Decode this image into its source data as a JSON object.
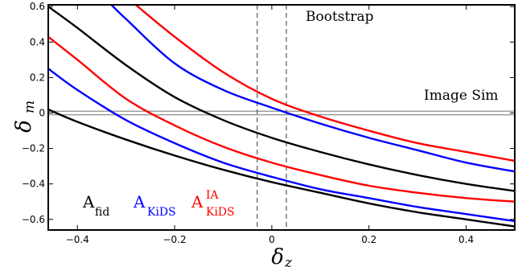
{
  "chart_data": {
    "type": "line",
    "xlabel": "δ",
    "xlabel_sub": "z",
    "ylabel": "δ",
    "ylabel_sub": "m",
    "xlim": [
      -0.46,
      0.5
    ],
    "ylim": [
      -0.66,
      0.61
    ],
    "x_ticks": [
      -0.4,
      -0.2,
      0,
      0.2,
      0.4
    ],
    "x_tick_labels": [
      "−0.4",
      "−0.2",
      "0",
      "0.2",
      "0.4"
    ],
    "y_ticks": [
      0.6,
      0.4,
      0.2,
      0,
      -0.2,
      -0.4,
      -0.6
    ],
    "y_tick_labels": [
      "0.6",
      "0.4",
      "0.2",
      "0",
      "−0.2",
      "−0.4",
      "−0.6"
    ],
    "grid": false,
    "colors": {
      "fid": "#000000",
      "kids": "#0000ff",
      "kids_ia": "#ff0000",
      "band": "#999999",
      "bootstrap": "#555555"
    },
    "annotations": {
      "bootstrap": {
        "text": "Bootstrap",
        "x_range": [
          -0.03,
          0.03
        ]
      },
      "image_sim": {
        "text": "Image Sim",
        "y_range": [
          -0.01,
          0.01
        ]
      }
    },
    "legend": [
      {
        "key": "fid",
        "base": "A",
        "sub": "fid",
        "sup": ""
      },
      {
        "key": "kids",
        "base": "A",
        "sub": "KiDS",
        "sup": ""
      },
      {
        "key": "kids_ia",
        "base": "A",
        "sub": "KiDS",
        "sup": "IA"
      }
    ],
    "series": [
      {
        "key": "fid",
        "x": [
          -0.46,
          -0.4,
          -0.3,
          -0.2,
          -0.1,
          0,
          0.1,
          0.2,
          0.3,
          0.4,
          0.5
        ],
        "y": [
          0.02,
          -0.05,
          -0.15,
          -0.24,
          -0.32,
          -0.39,
          -0.45,
          -0.51,
          -0.56,
          -0.6,
          -0.64
        ]
      },
      {
        "key": "kids",
        "x": [
          -0.46,
          -0.4,
          -0.3,
          -0.2,
          -0.1,
          0,
          0.1,
          0.2,
          0.3,
          0.4,
          0.5
        ],
        "y": [
          0.25,
          0.13,
          -0.04,
          -0.17,
          -0.28,
          -0.36,
          -0.43,
          -0.48,
          -0.53,
          -0.57,
          -0.61
        ]
      },
      {
        "key": "kids_ia",
        "x": [
          -0.46,
          -0.4,
          -0.3,
          -0.2,
          -0.1,
          0,
          0.1,
          0.2,
          0.3,
          0.4,
          0.5
        ],
        "y": [
          0.43,
          0.3,
          0.08,
          -0.07,
          -0.19,
          -0.28,
          -0.35,
          -0.41,
          -0.45,
          -0.48,
          -0.5
        ]
      },
      {
        "key": "fid",
        "x": [
          -0.46,
          -0.4,
          -0.3,
          -0.2,
          -0.1,
          0,
          0.1,
          0.2,
          0.3,
          0.4,
          0.5
        ],
        "y": [
          0.6,
          0.48,
          0.27,
          0.09,
          -0.04,
          -0.14,
          -0.22,
          -0.29,
          -0.35,
          -0.4,
          -0.44
        ]
      },
      {
        "key": "kids",
        "x": [
          -0.33,
          -0.3,
          -0.2,
          -0.1,
          0,
          0.1,
          0.2,
          0.3,
          0.4,
          0.5
        ],
        "y": [
          0.61,
          0.53,
          0.28,
          0.13,
          0.03,
          -0.06,
          -0.14,
          -0.21,
          -0.28,
          -0.33
        ]
      },
      {
        "key": "kids_ia",
        "x": [
          -0.28,
          -0.2,
          -0.1,
          0,
          0.1,
          0.2,
          0.3,
          0.4,
          0.5
        ],
        "y": [
          0.61,
          0.43,
          0.23,
          0.08,
          -0.02,
          -0.1,
          -0.17,
          -0.22,
          -0.27
        ]
      }
    ]
  }
}
